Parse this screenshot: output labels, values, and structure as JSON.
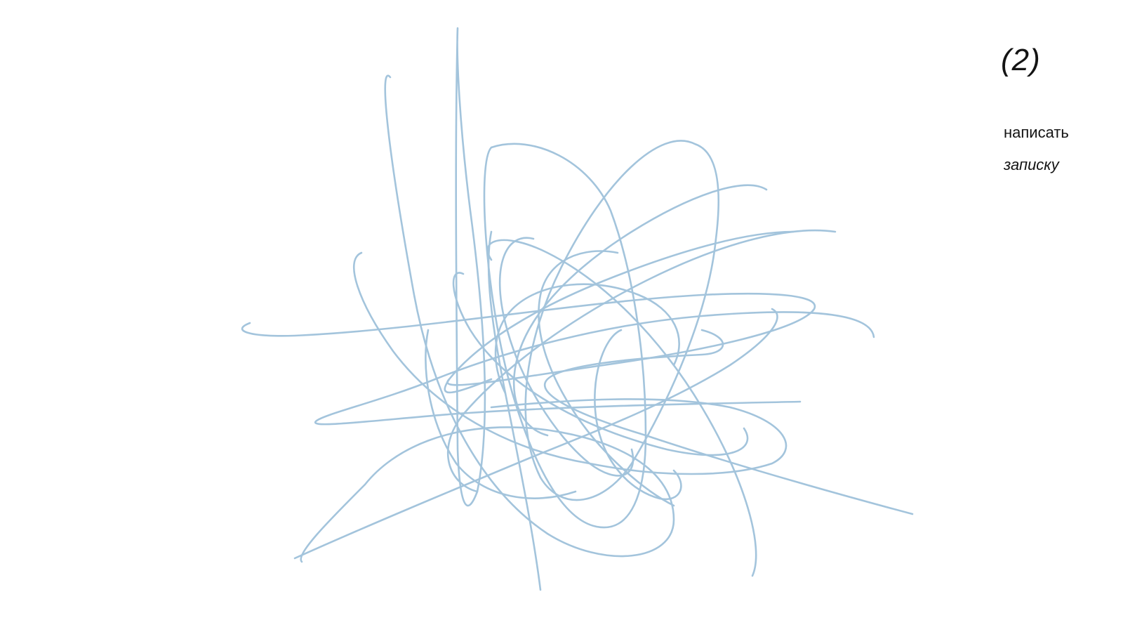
{
  "scribble": {
    "name": "tangled-line-drawing",
    "stroke_color": "#a3c4dc"
  },
  "note": {
    "step": "(2)",
    "line1": "написать",
    "line2": "записку"
  }
}
